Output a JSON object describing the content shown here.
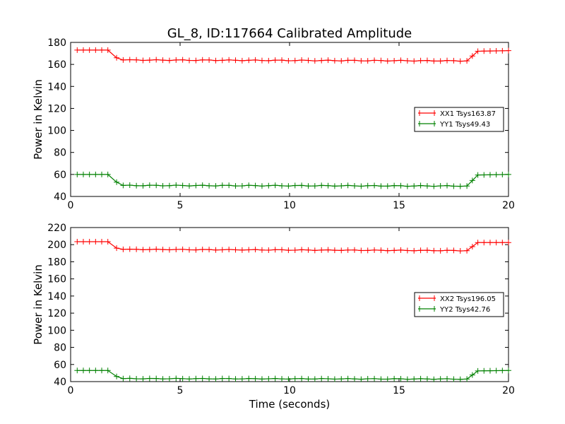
{
  "chart_data": {
    "title": "GL_8, ID:117664 Calibrated Amplitude",
    "xlabel": "Time (seconds)",
    "line_color_xx": "#ff0000",
    "line_color_yy": "#008000",
    "panels": [
      {
        "type": "line",
        "ylabel": "Power in Kelvin",
        "xlim": [
          0,
          20
        ],
        "ylim": [
          40,
          180
        ],
        "xticks": [
          0,
          5,
          10,
          15,
          20
        ],
        "yticks": [
          40,
          60,
          80,
          100,
          120,
          140,
          160,
          180
        ],
        "legend_position": "right",
        "series": [
          {
            "name": "XX1 Tsys163.87",
            "color": "#ff0000",
            "segments": [
              [
                0.3,
                173.0
              ],
              [
                1.7,
                173.0
              ],
              [
                2.1,
                166.0
              ],
              [
                2.4,
                164.0
              ],
              [
                18.1,
                163.2
              ],
              [
                18.6,
                172.0
              ],
              [
                20.0,
                172.5
              ]
            ]
          },
          {
            "name": "YY1 Tsys49.43",
            "color": "#008000",
            "segments": [
              [
                0.3,
                60.0
              ],
              [
                1.7,
                60.0
              ],
              [
                2.1,
                53.0
              ],
              [
                2.4,
                50.0
              ],
              [
                18.1,
                49.5
              ],
              [
                18.6,
                59.5
              ],
              [
                20.0,
                60.0
              ]
            ]
          }
        ]
      },
      {
        "type": "line",
        "ylabel": "Power in Kelvin",
        "xlim": [
          0,
          20
        ],
        "ylim": [
          40,
          220
        ],
        "xticks": [
          0,
          5,
          10,
          15,
          20
        ],
        "yticks": [
          40,
          60,
          80,
          100,
          120,
          140,
          160,
          180,
          200,
          220
        ],
        "legend_position": "right",
        "series": [
          {
            "name": "XX2 Tsys196.05",
            "color": "#ff0000",
            "segments": [
              [
                0.3,
                203.5
              ],
              [
                1.7,
                203.5
              ],
              [
                2.1,
                196.0
              ],
              [
                2.4,
                194.5
              ],
              [
                18.1,
                193.0
              ],
              [
                18.6,
                202.5
              ],
              [
                20.0,
                202.5
              ]
            ]
          },
          {
            "name": "YY2 Tsys42.76",
            "color": "#008000",
            "segments": [
              [
                0.3,
                53.0
              ],
              [
                1.7,
                53.0
              ],
              [
                2.1,
                46.0
              ],
              [
                2.4,
                43.5
              ],
              [
                18.1,
                43.0
              ],
              [
                18.6,
                52.5
              ],
              [
                20.0,
                53.0
              ]
            ]
          }
        ]
      }
    ]
  }
}
